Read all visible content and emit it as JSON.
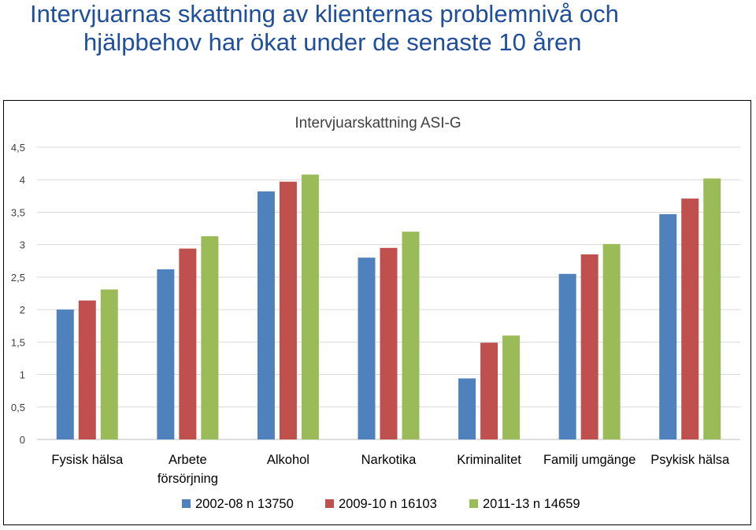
{
  "page": {
    "title_line1": "Intervjuarnas skattning av klienternas problemnivå och",
    "title_line2": "hjälpbehov har ökat under de senaste 10 åren"
  },
  "chart_data": {
    "type": "bar",
    "title": "Intervjuarskattning ASI-G",
    "xlabel": "",
    "ylabel": "",
    "ylim": [
      0,
      4.5
    ],
    "yticks": [
      "0",
      "0,5",
      "1",
      "1,5",
      "2",
      "2,5",
      "3",
      "3,5",
      "4",
      "4,5"
    ],
    "grid": true,
    "legend_position": "bottom",
    "categories": [
      [
        "Fysisk hälsa"
      ],
      [
        "Arbete",
        "försörjning"
      ],
      [
        "Alkohol"
      ],
      [
        "Narkotika"
      ],
      [
        "Kriminalitet"
      ],
      [
        "Familj umgänge"
      ],
      [
        "Psykisk hälsa"
      ]
    ],
    "series": [
      {
        "name": "2002-08  n 13750",
        "color": "#4f81bd",
        "values": [
          2.0,
          2.62,
          3.82,
          2.8,
          0.94,
          2.55,
          3.47
        ]
      },
      {
        "name": "2009-10 n 16103",
        "color": "#c0504d",
        "values": [
          2.14,
          2.94,
          3.97,
          2.95,
          1.49,
          2.85,
          3.71
        ]
      },
      {
        "name": "2011-13 n 14659",
        "color": "#9bbb59",
        "values": [
          2.31,
          3.13,
          4.08,
          3.2,
          1.6,
          3.01,
          4.02
        ]
      }
    ]
  }
}
